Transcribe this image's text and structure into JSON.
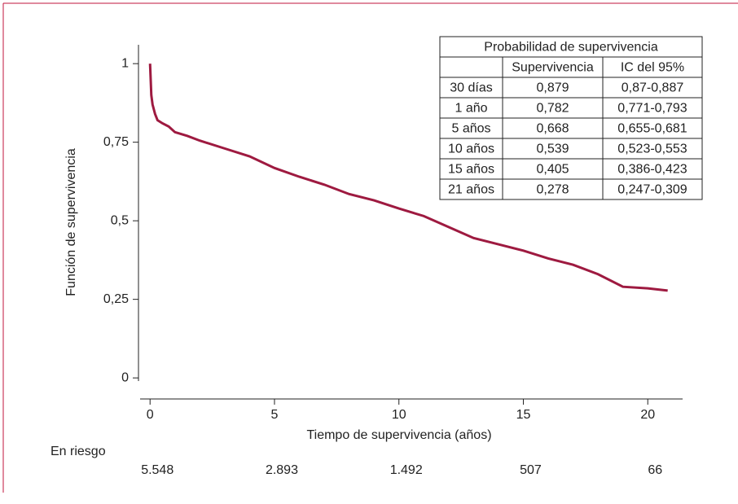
{
  "chart_data": {
    "type": "line",
    "ylabel": "Función de supervivencia",
    "xlabel": "Tiempo de supervivencia (años)",
    "x": [
      0,
      0.05,
      0.1,
      0.2,
      0.3,
      0.5,
      0.75,
      1,
      1.5,
      2,
      3,
      4,
      5,
      6,
      7,
      8,
      9,
      10,
      11,
      12,
      13,
      14,
      15,
      16,
      17,
      18,
      19,
      20,
      20.8
    ],
    "series": [
      {
        "color": "#9e1a40",
        "values": [
          1,
          0.9,
          0.87,
          0.84,
          0.82,
          0.81,
          0.8,
          0.782,
          0.77,
          0.755,
          0.73,
          0.705,
          0.668,
          0.64,
          0.615,
          0.585,
          0.565,
          0.539,
          0.515,
          0.48,
          0.445,
          0.425,
          0.405,
          0.38,
          0.36,
          0.33,
          0.29,
          0.285,
          0.278
        ]
      }
    ],
    "xlim": [
      -0.4,
      21.4
    ],
    "ylim": [
      -0.01,
      1.06
    ],
    "xticks": [
      0,
      5,
      10,
      15,
      20
    ],
    "yticks": [
      0,
      {
        "value": 0.25,
        "label": "0,25"
      },
      {
        "value": 0.5,
        "label": "0,5"
      },
      {
        "value": 0.75,
        "label": "0,75"
      },
      1
    ],
    "at_risk": {
      "label": "En riesgo",
      "counts": [
        {
          "value": 5548,
          "label": "5.548"
        },
        {
          "value": 2893,
          "label": "2.893"
        },
        {
          "value": 1492,
          "label": "1.492"
        },
        {
          "value": 507,
          "label": "507"
        },
        {
          "value": 66,
          "label": "66"
        }
      ]
    }
  },
  "table": {
    "title": "Probabilidad de supervivencia",
    "columns": [
      "Supervivencia",
      "IC del 95%"
    ],
    "rows": [
      [
        "30 días",
        "0,879",
        "0,87-0,887"
      ],
      [
        "1 año",
        "0,782",
        "0,771-0,793"
      ],
      [
        "5 años",
        "0,668",
        "0,655-0,681"
      ],
      [
        "10 años",
        "0,539",
        "0,523-0,553"
      ],
      [
        "15 años",
        "0,405",
        "0,386-0,423"
      ],
      [
        "21 años",
        "0,278",
        "0,247-0,309"
      ]
    ]
  }
}
